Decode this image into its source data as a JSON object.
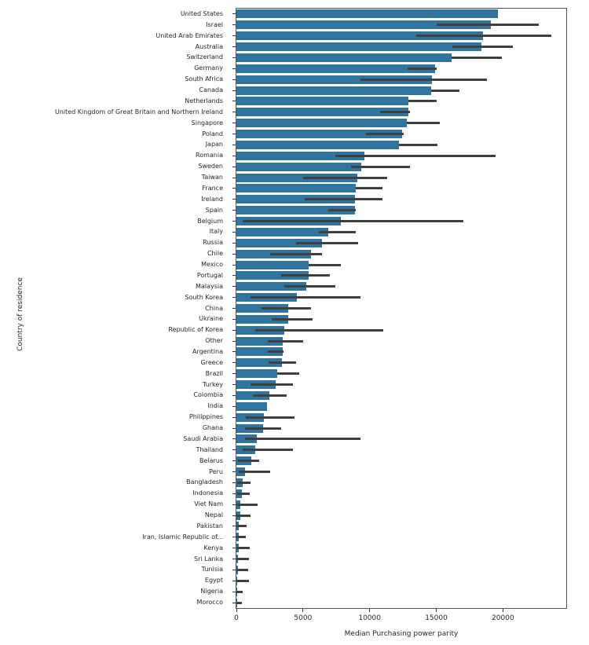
{
  "chart_data": {
    "type": "bar",
    "orientation": "horizontal",
    "title": "",
    "xlabel": "Median Purchasing power parity",
    "ylabel": "Country of residence",
    "xlim": [
      0,
      24750
    ],
    "xticks": [
      0,
      5000,
      10000,
      15000,
      20000
    ],
    "grid": false,
    "legend": null,
    "bar_color": "#31749E",
    "error_color": "#404040",
    "categories": [
      "United States",
      "Israel",
      "United Arab Emirates",
      "Australia",
      "Switzerland",
      "Germany",
      "South Africa",
      "Canada",
      "Netherlands",
      "United Kingdom of Great Britain and Northern Ireland",
      "Singapore",
      "Poland",
      "Japan",
      "Romania",
      "Sweden",
      "Taiwan",
      "France",
      "Ireland",
      "Spain",
      "Belgium",
      "Italy",
      "Russia",
      "Chile",
      "Mexico",
      "Portugal",
      "Malaysia",
      "South Korea",
      "China",
      "Ukraine",
      "Republic of Korea",
      "Other",
      "Argentina",
      "Greece",
      "Brazil",
      "Turkey",
      "Colombia",
      "India",
      "Philippines",
      "Ghana",
      "Saudi Arabia",
      "Thailand",
      "Belarus",
      "Peru",
      "Bangladesh",
      "Indonesia",
      "Viet Nam",
      "Nepal",
      "Pakistan",
      "Iran, Islamic Republic of...",
      "Kenya",
      "Sri Lanka",
      "Tunisia",
      "Egypt",
      "Nigeria",
      "Morocco"
    ],
    "values": [
      19600,
      19100,
      18520,
      18400,
      16130,
      14900,
      14660,
      14600,
      12900,
      12880,
      12770,
      12420,
      12220,
      9580,
      9380,
      9090,
      8950,
      8920,
      8900,
      7820,
      6900,
      6410,
      5610,
      5450,
      5400,
      5220,
      4560,
      3880,
      3860,
      3580,
      3500,
      3480,
      3420,
      3070,
      2930,
      2500,
      2300,
      2050,
      2010,
      1520,
      1410,
      1100,
      650,
      460,
      440,
      320,
      290,
      200,
      170,
      150,
      120,
      100,
      80,
      30,
      20
    ],
    "error_ranges": [
      null,
      [
        15000,
        22700
      ],
      [
        13500,
        23650
      ],
      [
        16200,
        20760
      ],
      [
        16130,
        19940
      ],
      [
        12840,
        15000
      ],
      [
        9290,
        18810
      ],
      [
        14600,
        16760
      ],
      [
        12900,
        15000
      ],
      [
        10810,
        13000
      ],
      [
        12770,
        15290
      ],
      [
        9700,
        12550
      ],
      [
        12220,
        15070
      ],
      [
        7430,
        19450
      ],
      [
        8600,
        13000
      ],
      [
        4990,
        11300
      ],
      [
        8950,
        10990
      ],
      [
        5140,
        10990
      ],
      [
        6900,
        8930
      ],
      [
        490,
        17010
      ],
      [
        6160,
        8930
      ],
      [
        4460,
        9150
      ],
      [
        2540,
        6450
      ],
      [
        5450,
        7820
      ],
      [
        3330,
        7000
      ],
      [
        3620,
        7430
      ],
      [
        1040,
        9290
      ],
      [
        1890,
        5570
      ],
      [
        2640,
        5730
      ],
      [
        1430,
        11010
      ],
      [
        2350,
        4990
      ],
      [
        2350,
        3560
      ],
      [
        2390,
        4500
      ],
      [
        3070,
        4730
      ],
      [
        1070,
        4260
      ],
      [
        1210,
        3770
      ],
      null,
      [
        690,
        4340
      ],
      [
        630,
        3330
      ],
      [
        630,
        9330
      ],
      [
        490,
        4260
      ],
      [
        100,
        1720
      ],
      [
        190,
        2540
      ],
      [
        50,
        1040
      ],
      [
        50,
        1000
      ],
      [
        0,
        1620
      ],
      [
        0,
        1050
      ],
      [
        0,
        770
      ],
      [
        0,
        700
      ],
      [
        0,
        1000
      ],
      [
        0,
        950
      ],
      [
        0,
        900
      ],
      [
        0,
        930
      ],
      [
        0,
        450
      ],
      [
        0,
        420
      ]
    ]
  }
}
